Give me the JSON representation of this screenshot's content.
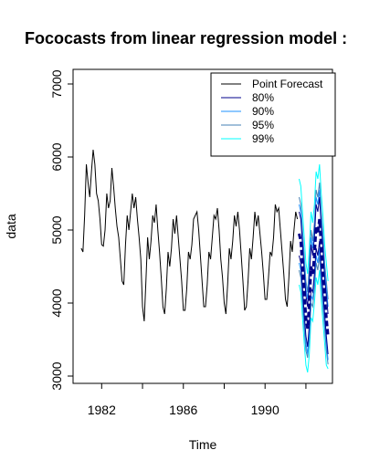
{
  "chart_data": {
    "type": "line",
    "title": "Fococasts from linear regression model :",
    "xlabel": "Time",
    "ylabel": "data",
    "xlim": [
      1980.6,
      1993.3
    ],
    "ylim": [
      2900,
      7200
    ],
    "x_ticks": [
      1982,
      1986,
      1990
    ],
    "y_ticks": [
      3000,
      4000,
      5000,
      6000,
      7000
    ],
    "grid": false,
    "legend_position": "top-right",
    "legend": [
      {
        "label": "Point Forecast",
        "color": "#000000"
      },
      {
        "label": "80%",
        "color": "#00008b"
      },
      {
        "label": "90%",
        "color": "#1e90ff"
      },
      {
        "label": "95%",
        "color": "#4682b4"
      },
      {
        "label": "99%",
        "color": "#00ffff"
      }
    ],
    "history": {
      "name": "data",
      "color": "#000000",
      "start": 1981.0,
      "frequency": 12,
      "values": [
        4750,
        4700,
        5200,
        5900,
        5650,
        5450,
        5800,
        6100,
        5900,
        5500,
        5400,
        5150,
        4800,
        4780,
        5000,
        5500,
        5300,
        5400,
        5850,
        5600,
        5300,
        5050,
        4900,
        4600,
        4300,
        4250,
        4800,
        5200,
        5000,
        5250,
        5500,
        5300,
        5450,
        5150,
        4900,
        4600,
        3950,
        3750,
        4300,
        4900,
        4600,
        4850,
        5200,
        5100,
        5350,
        5000,
        4700,
        4350,
        3950,
        3850,
        4200,
        4700,
        4500,
        4750,
        5150,
        4950,
        5200,
        4900,
        4600,
        4300,
        3900,
        3900,
        4200,
        4700,
        4600,
        4800,
        5150,
        5200,
        5250,
        5000,
        4650,
        4300,
        3950,
        3950,
        4250,
        4700,
        4600,
        4900,
        5200,
        5150,
        5300,
        5000,
        4600,
        4350,
        4000,
        3850,
        4250,
        4750,
        4600,
        4850,
        5200,
        5050,
        5250,
        5000,
        4650,
        4300,
        3900,
        3950,
        4300,
        4750,
        4600,
        4900,
        5250,
        5050,
        5200,
        4950,
        4700,
        4400,
        4050,
        4050,
        4350,
        4700,
        4650,
        4900,
        5350,
        5250,
        5300,
        5000,
        4700,
        4400,
        4050,
        3950,
        4350,
        4850,
        4700,
        5000,
        5250,
        5150
      ]
    },
    "forecast": {
      "start": 1991.6667,
      "frequency": 12,
      "point": [
        4950,
        4850,
        4500,
        4150,
        3800,
        3650,
        4000,
        4500,
        4400,
        4650,
        5050,
        4950,
        5150,
        4750,
        4450,
        4100,
        3800,
        3550
      ],
      "lo80": [
        4650,
        4550,
        4200,
        3850,
        3550,
        3400,
        3700,
        4200,
        4150,
        4400,
        4750,
        4650,
        4850,
        4450,
        4150,
        3850,
        3550,
        3300
      ],
      "hi80": [
        5250,
        5150,
        4800,
        4450,
        4100,
        3950,
        4300,
        4800,
        4650,
        4900,
        5350,
        5250,
        5450,
        5050,
        4750,
        4350,
        4100,
        3850
      ],
      "lo90": [
        4550,
        4450,
        4100,
        3750,
        3450,
        3300,
        3600,
        4100,
        4050,
        4300,
        4650,
        4550,
        4750,
        4350,
        4050,
        3750,
        3450,
        3220
      ],
      "hi90": [
        5350,
        5250,
        4900,
        4550,
        4200,
        4050,
        4400,
        4900,
        4750,
        5000,
        5450,
        5350,
        5550,
        5150,
        4850,
        4450,
        4200,
        3950
      ],
      "lo95": [
        4450,
        4350,
        4000,
        3650,
        3350,
        3250,
        3500,
        4000,
        3950,
        4200,
        4550,
        4450,
        4650,
        4250,
        3950,
        3650,
        3350,
        3160
      ],
      "hi95": [
        5450,
        5350,
        5000,
        4650,
        4300,
        4150,
        4500,
        5000,
        4850,
        5100,
        5550,
        5450,
        5650,
        5250,
        4950,
        4550,
        4300,
        4050
      ],
      "lo99": [
        4250,
        4150,
        3800,
        3450,
        3150,
        3050,
        3300,
        3800,
        3750,
        4000,
        4350,
        4250,
        4450,
        4050,
        3750,
        3450,
        3150,
        3100
      ],
      "hi99": [
        5700,
        5600,
        5250,
        4900,
        4550,
        4400,
        4750,
        5250,
        5100,
        5350,
        5800,
        5700,
        5900,
        5500,
        5200,
        4800,
        4550,
        4300
      ]
    }
  }
}
